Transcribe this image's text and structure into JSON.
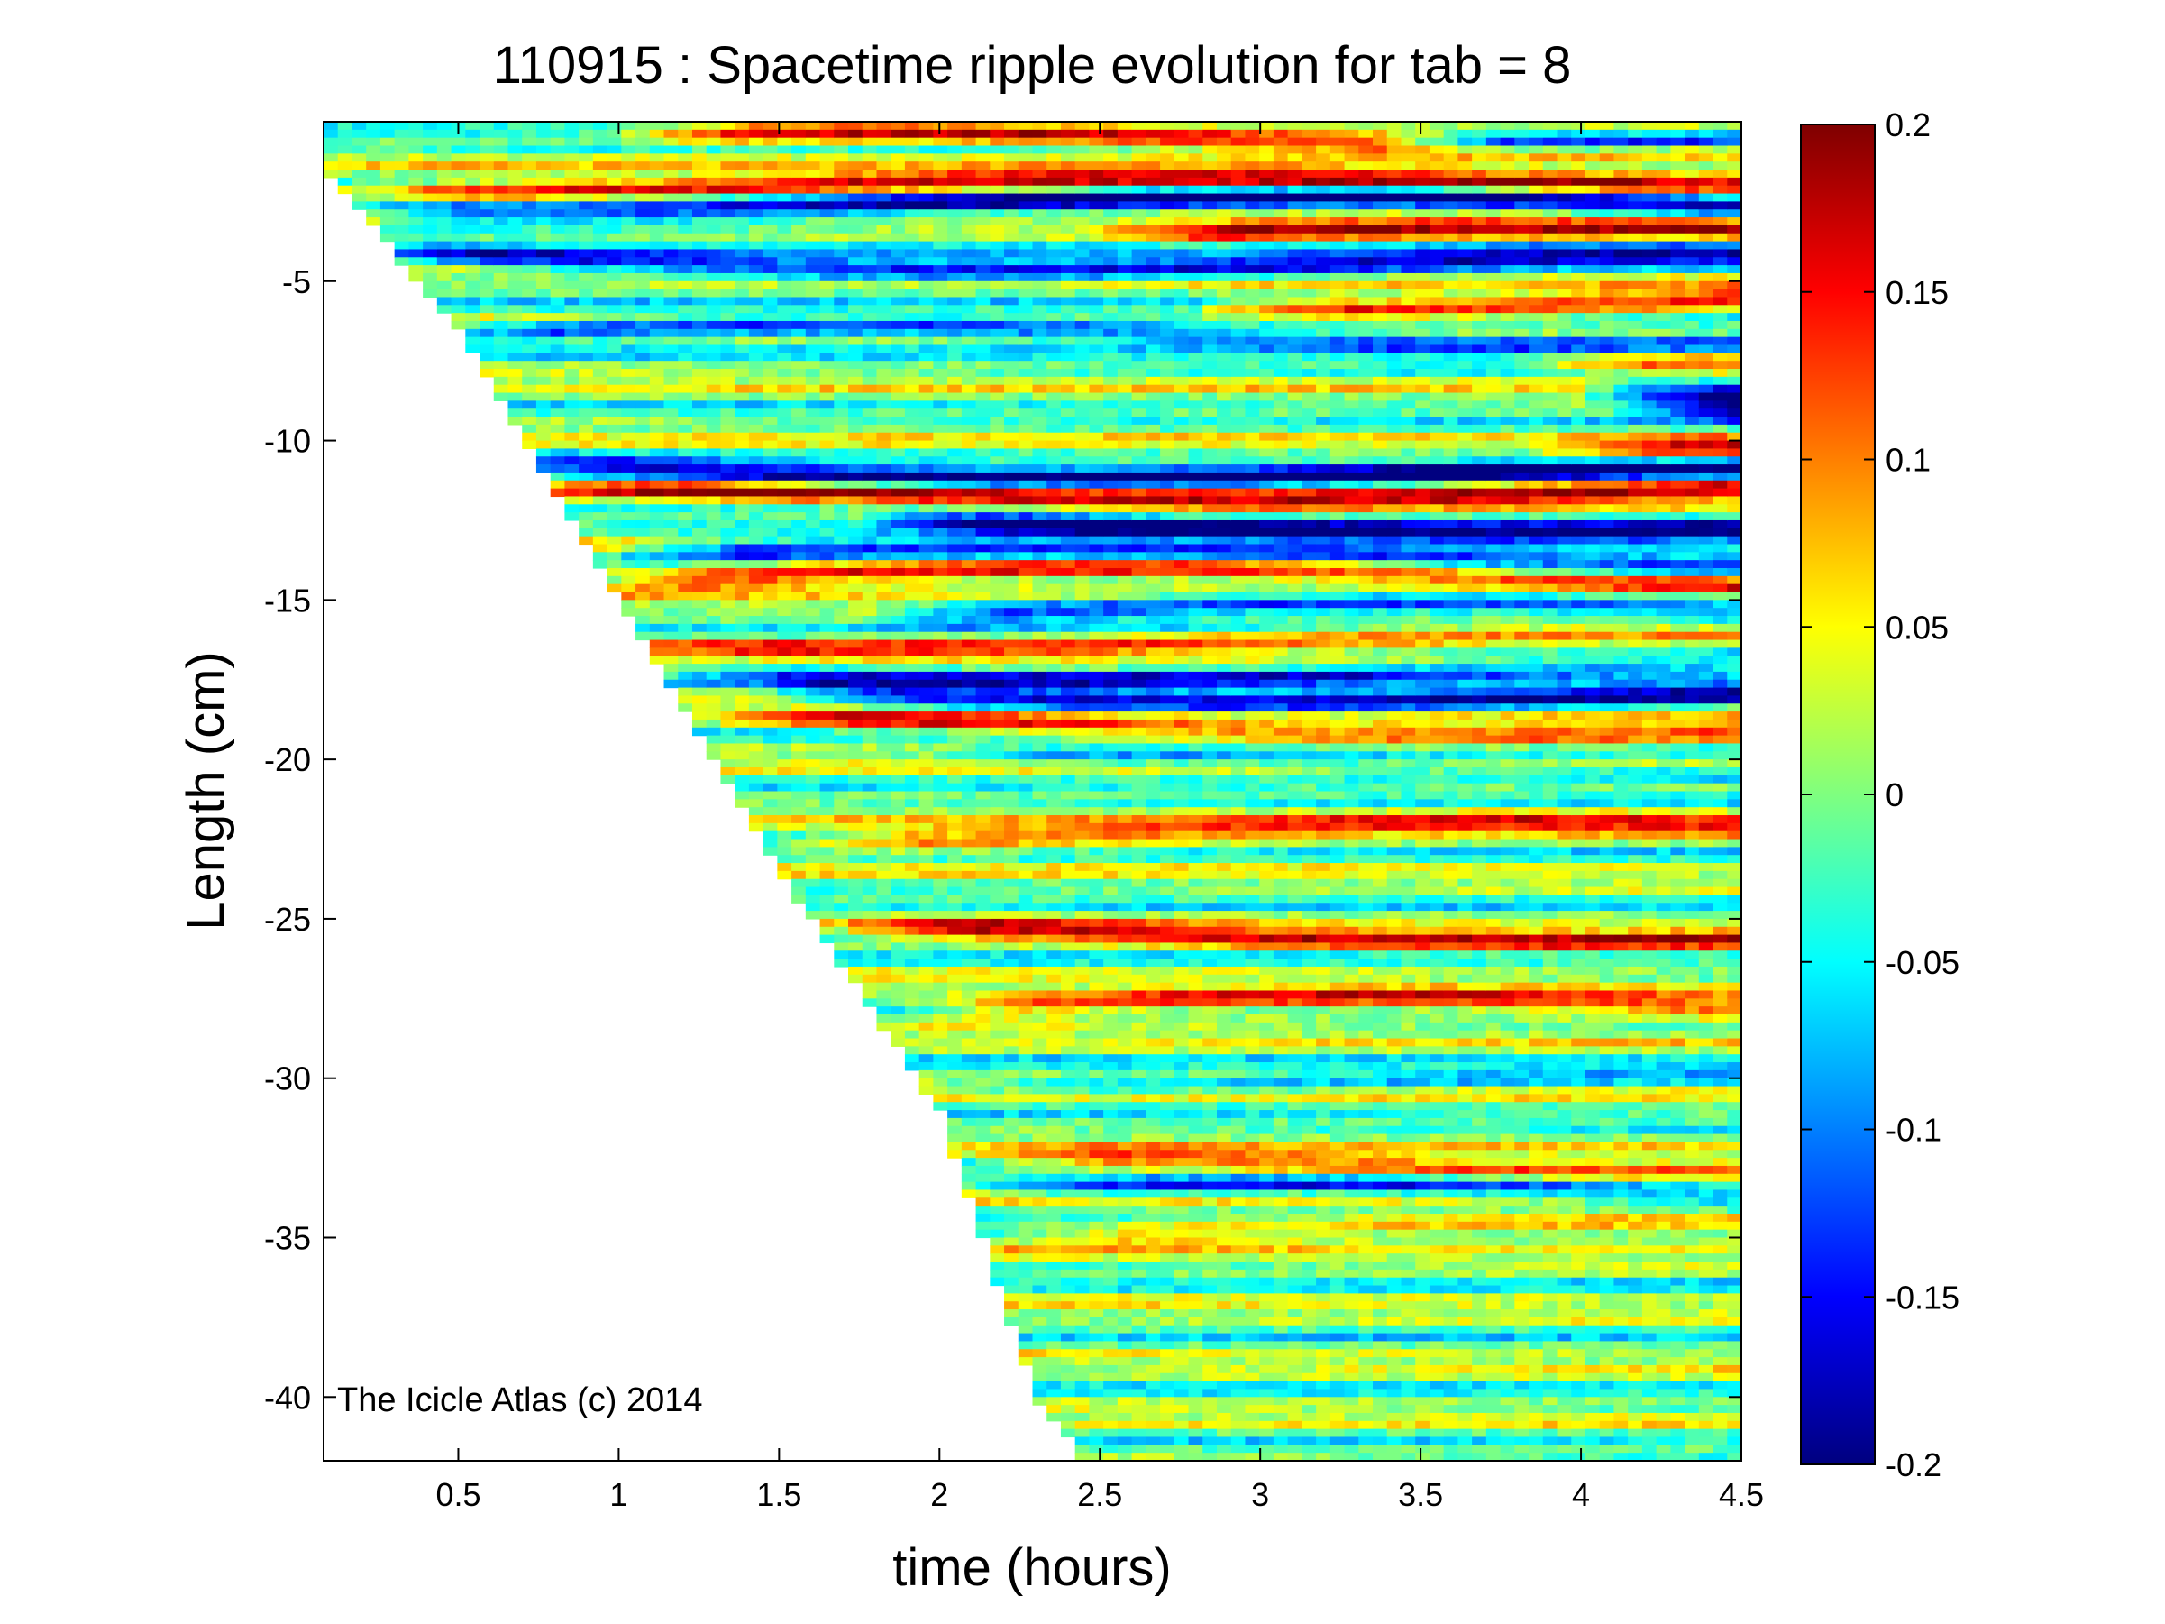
{
  "chart_data": {
    "type": "heatmap",
    "title": "110915 : Spacetime ripple evolution for tab = 8",
    "xlabel": "time (hours)",
    "ylabel": "Length (cm)",
    "xlim": [
      0.08,
      4.5
    ],
    "ylim": [
      -42,
      0
    ],
    "x_ticks": [
      0.5,
      1,
      1.5,
      2,
      2.5,
      3,
      3.5,
      4,
      4.5
    ],
    "x_tick_labels": [
      "0.5",
      "1",
      "1.5",
      "2",
      "2.5",
      "3",
      "3.5",
      "4",
      "4.5"
    ],
    "y_ticks": [
      -5,
      -10,
      -15,
      -20,
      -25,
      -30,
      -35,
      -40
    ],
    "y_tick_labels": [
      "-5",
      "-10",
      "-15",
      "-20",
      "-25",
      "-30",
      "-35",
      "-40"
    ],
    "colorbar": {
      "range": [
        -0.2,
        0.2
      ],
      "ticks": [
        0.2,
        0.15,
        0.1,
        0.05,
        0,
        -0.05,
        -0.1,
        -0.15,
        -0.2
      ],
      "tick_labels": [
        "0.2",
        "0.15",
        "0.1",
        "0.05",
        "0",
        "-0.05",
        "-0.1",
        "-0.15",
        "-0.2"
      ],
      "colormap": "jet"
    },
    "data_boundary": {
      "description": "icicle tip grows downward over time; data exists only above the front",
      "front": [
        [
          0.08,
          -1.5
        ],
        [
          0.5,
          -6.5
        ],
        [
          1.0,
          -15.0
        ],
        [
          1.5,
          -23.5
        ],
        [
          2.0,
          -31.0
        ],
        [
          2.3,
          -40.0
        ],
        [
          2.45,
          -42.0
        ]
      ]
    },
    "bands": [
      {
        "y": -0.4,
        "x_start": 3.4,
        "amplitude": -0.2
      },
      {
        "y": -0.6,
        "x_start": 1.0,
        "amplitude": 0.18
      },
      {
        "y": -2.0,
        "x_start": 0.1,
        "amplitude": 0.17
      },
      {
        "y": -2.6,
        "x_start": 0.1,
        "amplitude": -0.18
      },
      {
        "y": -3.5,
        "x_start": 2.5,
        "amplitude": 0.14
      },
      {
        "y": -4.4,
        "x_start": 0.2,
        "amplitude": -0.17
      },
      {
        "y": -5.6,
        "x_start": 2.8,
        "amplitude": 0.16
      },
      {
        "y": -6.7,
        "x_start": 0.4,
        "amplitude": -0.15
      },
      {
        "y": -7.4,
        "x_start": 3.8,
        "amplitude": 0.16
      },
      {
        "y": -8.3,
        "x_start": 4.0,
        "amplitude": -0.2
      },
      {
        "y": -9.0,
        "x_start": 4.1,
        "amplitude": -0.2
      },
      {
        "y": -10.5,
        "x_start": 3.9,
        "amplitude": 0.18
      },
      {
        "y": -11.0,
        "x_start": 0.6,
        "amplitude": -0.19
      },
      {
        "y": -11.6,
        "x_start": 0.7,
        "amplitude": 0.17
      },
      {
        "y": -12.7,
        "x_start": 1.8,
        "amplitude": -0.19
      },
      {
        "y": -13.6,
        "x_start": 1.0,
        "amplitude": -0.18
      },
      {
        "y": -14.3,
        "x_start": 0.9,
        "amplitude": 0.19
      },
      {
        "y": -15.4,
        "x_start": 1.8,
        "amplitude": -0.15
      },
      {
        "y": -16.3,
        "x_start": 1.0,
        "amplitude": 0.12
      },
      {
        "y": -17.2,
        "x_start": 1.2,
        "amplitude": -0.13
      },
      {
        "y": -18.0,
        "x_start": 1.5,
        "amplitude": -0.17
      },
      {
        "y": -19.0,
        "x_start": 1.3,
        "amplitude": 0.14
      },
      {
        "y": -20.2,
        "x_start": 2.0,
        "amplitude": -0.08
      },
      {
        "y": -22.3,
        "x_start": 1.5,
        "amplitude": 0.13
      },
      {
        "y": -25.5,
        "x_start": 1.7,
        "amplitude": 0.15
      },
      {
        "y": -27.8,
        "x_start": 1.9,
        "amplitude": 0.16
      },
      {
        "y": -30.0,
        "x_start": 2.0,
        "amplitude": -0.06
      },
      {
        "y": -32.8,
        "x_start": 2.1,
        "amplitude": 0.14
      },
      {
        "y": -33.6,
        "x_start": 2.1,
        "amplitude": -0.12
      },
      {
        "y": -34.9,
        "x_start": 2.2,
        "amplitude": 0.1
      }
    ],
    "annotation": "The Icicle Atlas (c) 2014"
  }
}
